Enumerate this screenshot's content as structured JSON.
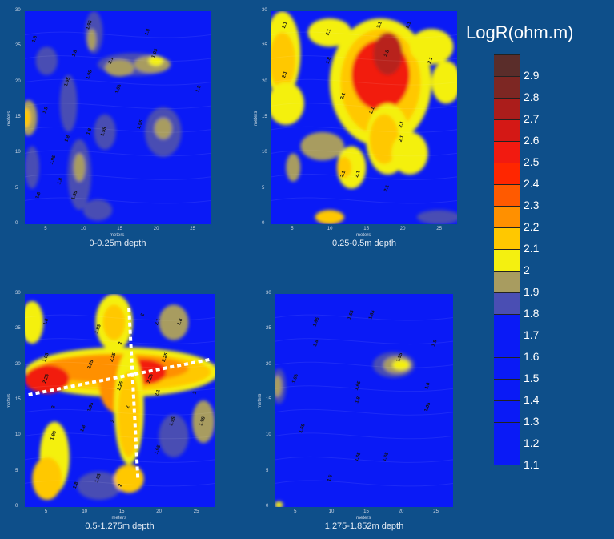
{
  "chart_data": [
    {
      "type": "heatmap",
      "title": "0-0.25m depth",
      "xlabel": "meters",
      "ylabel": "meters",
      "xticks": [
        5,
        10,
        15,
        20,
        25
      ],
      "yticks": [
        0,
        5,
        10,
        15,
        20,
        25,
        30
      ],
      "xlim": [
        2,
        27.5
      ],
      "ylim": [
        0,
        30
      ],
      "contour_labels": [
        {
          "text": "1.8",
          "x": 3.5,
          "y": 26
        },
        {
          "text": "1.95",
          "x": 11,
          "y": 28
        },
        {
          "text": "1.8",
          "x": 19,
          "y": 27
        },
        {
          "text": "1.8",
          "x": 9,
          "y": 24
        },
        {
          "text": "2.1",
          "x": 14,
          "y": 23
        },
        {
          "text": "1.95",
          "x": 20,
          "y": 24
        },
        {
          "text": "1.95",
          "x": 8,
          "y": 20
        },
        {
          "text": "1.95",
          "x": 11,
          "y": 21
        },
        {
          "text": "1.95",
          "x": 15,
          "y": 19
        },
        {
          "text": "1.8",
          "x": 26,
          "y": 19
        },
        {
          "text": "1.8",
          "x": 5,
          "y": 16
        },
        {
          "text": "1.8",
          "x": 8,
          "y": 12
        },
        {
          "text": "1.8",
          "x": 11,
          "y": 13
        },
        {
          "text": "1.95",
          "x": 13,
          "y": 13
        },
        {
          "text": "1.95",
          "x": 18,
          "y": 14
        },
        {
          "text": "1.95",
          "x": 6,
          "y": 9
        },
        {
          "text": "1.8",
          "x": 7,
          "y": 6
        },
        {
          "text": "1.95",
          "x": 9,
          "y": 4
        },
        {
          "text": "1.8",
          "x": 4,
          "y": 4
        }
      ]
    },
    {
      "type": "heatmap",
      "title": "0.25-0.5m depth",
      "xlabel": "meters",
      "ylabel": "meters",
      "xticks": [
        5,
        10,
        15,
        20,
        25
      ],
      "yticks": [
        0,
        5,
        10,
        15,
        20,
        25,
        30
      ],
      "xlim": [
        2,
        27.5
      ],
      "ylim": [
        0,
        30
      ],
      "contour_labels": [
        {
          "text": "2.1",
          "x": 4,
          "y": 28
        },
        {
          "text": "2.1",
          "x": 10,
          "y": 27
        },
        {
          "text": "2.1",
          "x": 17,
          "y": 28
        },
        {
          "text": "2.1",
          "x": 21,
          "y": 28
        },
        {
          "text": "2.1",
          "x": 4,
          "y": 21
        },
        {
          "text": "1.8",
          "x": 10,
          "y": 23
        },
        {
          "text": "2.8",
          "x": 18,
          "y": 24
        },
        {
          "text": "2.1",
          "x": 24,
          "y": 23
        },
        {
          "text": "2.1",
          "x": 12,
          "y": 18
        },
        {
          "text": "2.1",
          "x": 16,
          "y": 16
        },
        {
          "text": "2.1",
          "x": 20,
          "y": 14
        },
        {
          "text": "2.1",
          "x": 20,
          "y": 12
        },
        {
          "text": "2.1",
          "x": 12,
          "y": 7
        },
        {
          "text": "2.1",
          "x": 14,
          "y": 7
        },
        {
          "text": "2.1",
          "x": 18,
          "y": 5
        }
      ]
    },
    {
      "type": "heatmap",
      "title": "0.5-1.275m depth",
      "xlabel": "meters",
      "ylabel": "meters",
      "xticks": [
        5,
        10,
        15,
        20,
        25
      ],
      "yticks": [
        0,
        5,
        10,
        15,
        20,
        25,
        30
      ],
      "xlim": [
        2,
        27.5
      ],
      "ylim": [
        0,
        30
      ],
      "contour_labels": [
        {
          "text": "1.8",
          "x": 5,
          "y": 26
        },
        {
          "text": "1.95",
          "x": 12,
          "y": 25
        },
        {
          "text": "2",
          "x": 18,
          "y": 27
        },
        {
          "text": "2.1",
          "x": 20,
          "y": 26
        },
        {
          "text": "1.8",
          "x": 23,
          "y": 26
        },
        {
          "text": "2",
          "x": 15,
          "y": 23
        },
        {
          "text": "1.95",
          "x": 5,
          "y": 21
        },
        {
          "text": "2.25",
          "x": 14,
          "y": 21
        },
        {
          "text": "2.25",
          "x": 21,
          "y": 21
        },
        {
          "text": "2.25",
          "x": 5,
          "y": 18
        },
        {
          "text": "2.25",
          "x": 11,
          "y": 20
        },
        {
          "text": "2.25",
          "x": 19,
          "y": 18
        },
        {
          "text": "2.25",
          "x": 15,
          "y": 17
        },
        {
          "text": "2.1",
          "x": 20,
          "y": 16
        },
        {
          "text": "2",
          "x": 25,
          "y": 16
        },
        {
          "text": "2",
          "x": 6,
          "y": 14
        },
        {
          "text": "1.95",
          "x": 11,
          "y": 14
        },
        {
          "text": "2",
          "x": 16,
          "y": 14
        },
        {
          "text": "1.95",
          "x": 22,
          "y": 12
        },
        {
          "text": "1.95",
          "x": 26,
          "y": 12
        },
        {
          "text": "1.95",
          "x": 6,
          "y": 10
        },
        {
          "text": "1.8",
          "x": 10,
          "y": 11
        },
        {
          "text": "2",
          "x": 14,
          "y": 12
        },
        {
          "text": "1.95",
          "x": 20,
          "y": 8
        },
        {
          "text": "1.8",
          "x": 9,
          "y": 3
        },
        {
          "text": "1.95",
          "x": 12,
          "y": 4
        },
        {
          "text": "2",
          "x": 15,
          "y": 3
        }
      ],
      "annotations": [
        {
          "type": "dashed-line",
          "points": [
            [
              2.5,
              15.8
            ],
            [
              27,
              20.8
            ]
          ]
        },
        {
          "type": "dashed-line",
          "points": [
            [
              16,
              28
            ],
            [
              17.2,
              4
            ]
          ]
        }
      ]
    },
    {
      "type": "heatmap",
      "title": "1.275-1.852m depth",
      "xlabel": "meters",
      "ylabel": "meters",
      "xticks": [
        5,
        10,
        15,
        20,
        25
      ],
      "yticks": [
        0,
        5,
        10,
        15,
        20,
        25,
        30
      ],
      "xlim": [
        2,
        27.5
      ],
      "ylim": [
        0,
        30
      ],
      "contour_labels": [
        {
          "text": "1.65",
          "x": 8,
          "y": 26
        },
        {
          "text": "1.65",
          "x": 13,
          "y": 27
        },
        {
          "text": "1.65",
          "x": 16,
          "y": 27
        },
        {
          "text": "1.8",
          "x": 8,
          "y": 23
        },
        {
          "text": "1.95",
          "x": 20,
          "y": 21
        },
        {
          "text": "1.8",
          "x": 25,
          "y": 23
        },
        {
          "text": "1.65",
          "x": 5,
          "y": 18
        },
        {
          "text": "1.65",
          "x": 14,
          "y": 17
        },
        {
          "text": "1.8",
          "x": 24,
          "y": 17
        },
        {
          "text": "1.8",
          "x": 14,
          "y": 15
        },
        {
          "text": "1.65",
          "x": 24,
          "y": 14
        },
        {
          "text": "1.65",
          "x": 6,
          "y": 11
        },
        {
          "text": "1.65",
          "x": 14,
          "y": 7
        },
        {
          "text": "1.65",
          "x": 18,
          "y": 7
        },
        {
          "text": "1.5",
          "x": 10,
          "y": 4
        }
      ]
    }
  ],
  "legend": {
    "title": "LogR(ohm.m)",
    "levels": [
      "2.9",
      "2.8",
      "2.7",
      "2.6",
      "2.5",
      "2.4",
      "2.3",
      "2.2",
      "2.1",
      "2",
      "1.9",
      "1.8",
      "1.7",
      "1.6",
      "1.5",
      "1.4",
      "1.3",
      "1.2",
      "1.1"
    ],
    "colors": [
      "#5a2d2a",
      "#7d2723",
      "#ab1d1b",
      "#d41815",
      "#f21a10",
      "#ff2600",
      "#ff5a00",
      "#ff9000",
      "#ffc800",
      "#f4f010",
      "#a89c60",
      "#4a4eb3",
      "#0a1af6",
      "#0a1af6",
      "#0a1af6",
      "#0a1af6",
      "#0a1af6",
      "#0a1af6",
      "#0a1af6"
    ]
  }
}
